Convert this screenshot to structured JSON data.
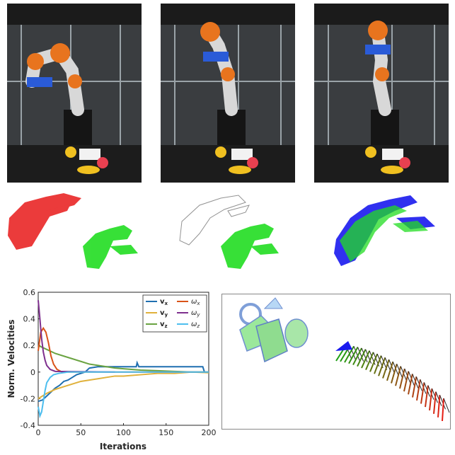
{
  "colors": {
    "orange": "#e8741e",
    "blue_gripper": "#2a5bd7",
    "red_cloud": "#e81919",
    "green_cloud": "#22dd22",
    "gray_cloud": "#777777",
    "blue_cloud": "#1a1aee",
    "trajectory_dark": "#222222"
  },
  "photos": [
    {
      "pose": "left-lean"
    },
    {
      "pose": "upright"
    },
    {
      "pose": "upright-folded"
    }
  ],
  "icons": [
    "robot-arm-icon",
    "point-cloud-icon",
    "trajectory-icon"
  ],
  "chart_data": {
    "type": "line",
    "xlabel": "Iterations",
    "ylabel": "Norm. Velocities",
    "xlim": [
      0,
      200
    ],
    "ylim": [
      -0.4,
      0.6
    ],
    "x_ticks": [
      "0",
      "50",
      "100",
      "150",
      "200"
    ],
    "y_ticks": [
      "-0.4",
      "-0.2",
      "0",
      "0.2",
      "0.4",
      "0.6"
    ],
    "legend_position": "top-right",
    "grid": false,
    "series": [
      {
        "name": "v",
        "sub": "x",
        "color": "#1f6fb0",
        "points": [
          [
            0,
            -0.22
          ],
          [
            5,
            -0.21
          ],
          [
            10,
            -0.18
          ],
          [
            15,
            -0.15
          ],
          [
            20,
            -0.12
          ],
          [
            25,
            -0.1
          ],
          [
            30,
            -0.07
          ],
          [
            35,
            -0.06
          ],
          [
            40,
            -0.04
          ],
          [
            45,
            -0.02
          ],
          [
            55,
            0.0
          ],
          [
            60,
            0.03
          ],
          [
            70,
            0.04
          ],
          [
            100,
            0.04
          ],
          [
            115,
            0.04
          ],
          [
            116,
            0.07
          ],
          [
            118,
            0.04
          ],
          [
            150,
            0.04
          ],
          [
            180,
            0.04
          ],
          [
            193,
            0.04
          ],
          [
            195,
            0.0
          ]
        ]
      },
      {
        "name": "v",
        "sub": "y",
        "color": "#e0b13b",
        "points": [
          [
            0,
            -0.2
          ],
          [
            10,
            -0.16
          ],
          [
            20,
            -0.13
          ],
          [
            30,
            -0.11
          ],
          [
            40,
            -0.09
          ],
          [
            50,
            -0.07
          ],
          [
            60,
            -0.06
          ],
          [
            70,
            -0.05
          ],
          [
            80,
            -0.04
          ],
          [
            90,
            -0.03
          ],
          [
            100,
            -0.03
          ],
          [
            120,
            -0.02
          ],
          [
            140,
            -0.01
          ],
          [
            160,
            -0.01
          ],
          [
            180,
            0.0
          ],
          [
            200,
            -0.005
          ]
        ]
      },
      {
        "name": "v",
        "sub": "z",
        "color": "#6aa341",
        "points": [
          [
            0,
            0.2
          ],
          [
            10,
            0.17
          ],
          [
            20,
            0.14
          ],
          [
            30,
            0.12
          ],
          [
            40,
            0.1
          ],
          [
            50,
            0.08
          ],
          [
            60,
            0.06
          ],
          [
            70,
            0.05
          ],
          [
            80,
            0.04
          ],
          [
            90,
            0.03
          ],
          [
            100,
            0.025
          ],
          [
            120,
            0.015
          ],
          [
            140,
            0.01
          ],
          [
            160,
            0.005
          ],
          [
            180,
            0.0
          ],
          [
            200,
            0.0
          ]
        ]
      },
      {
        "name": "ω",
        "sub": "x",
        "color": "#d95319",
        "points": [
          [
            0,
            0.16
          ],
          [
            3,
            0.3
          ],
          [
            6,
            0.33
          ],
          [
            9,
            0.3
          ],
          [
            12,
            0.22
          ],
          [
            15,
            0.12
          ],
          [
            18,
            0.06
          ],
          [
            22,
            0.02
          ],
          [
            28,
            0.0
          ],
          [
            200,
            0.0
          ]
        ]
      },
      {
        "name": "ω",
        "sub": "y",
        "color": "#7e2f8e",
        "points": [
          [
            0,
            0.54
          ],
          [
            2,
            0.4
          ],
          [
            4,
            0.25
          ],
          [
            6,
            0.15
          ],
          [
            8,
            0.09
          ],
          [
            10,
            0.05
          ],
          [
            14,
            0.02
          ],
          [
            20,
            0.005
          ],
          [
            90,
            0.0
          ]
        ]
      },
      {
        "name": "ω",
        "sub": "z",
        "color": "#4dbeee",
        "points": [
          [
            0,
            -0.26
          ],
          [
            2,
            -0.33
          ],
          [
            4,
            -0.3
          ],
          [
            6,
            -0.22
          ],
          [
            8,
            -0.14
          ],
          [
            10,
            -0.08
          ],
          [
            14,
            -0.04
          ],
          [
            18,
            -0.02
          ],
          [
            24,
            -0.01
          ],
          [
            35,
            0.0
          ],
          [
            200,
            0.0
          ]
        ]
      }
    ]
  }
}
